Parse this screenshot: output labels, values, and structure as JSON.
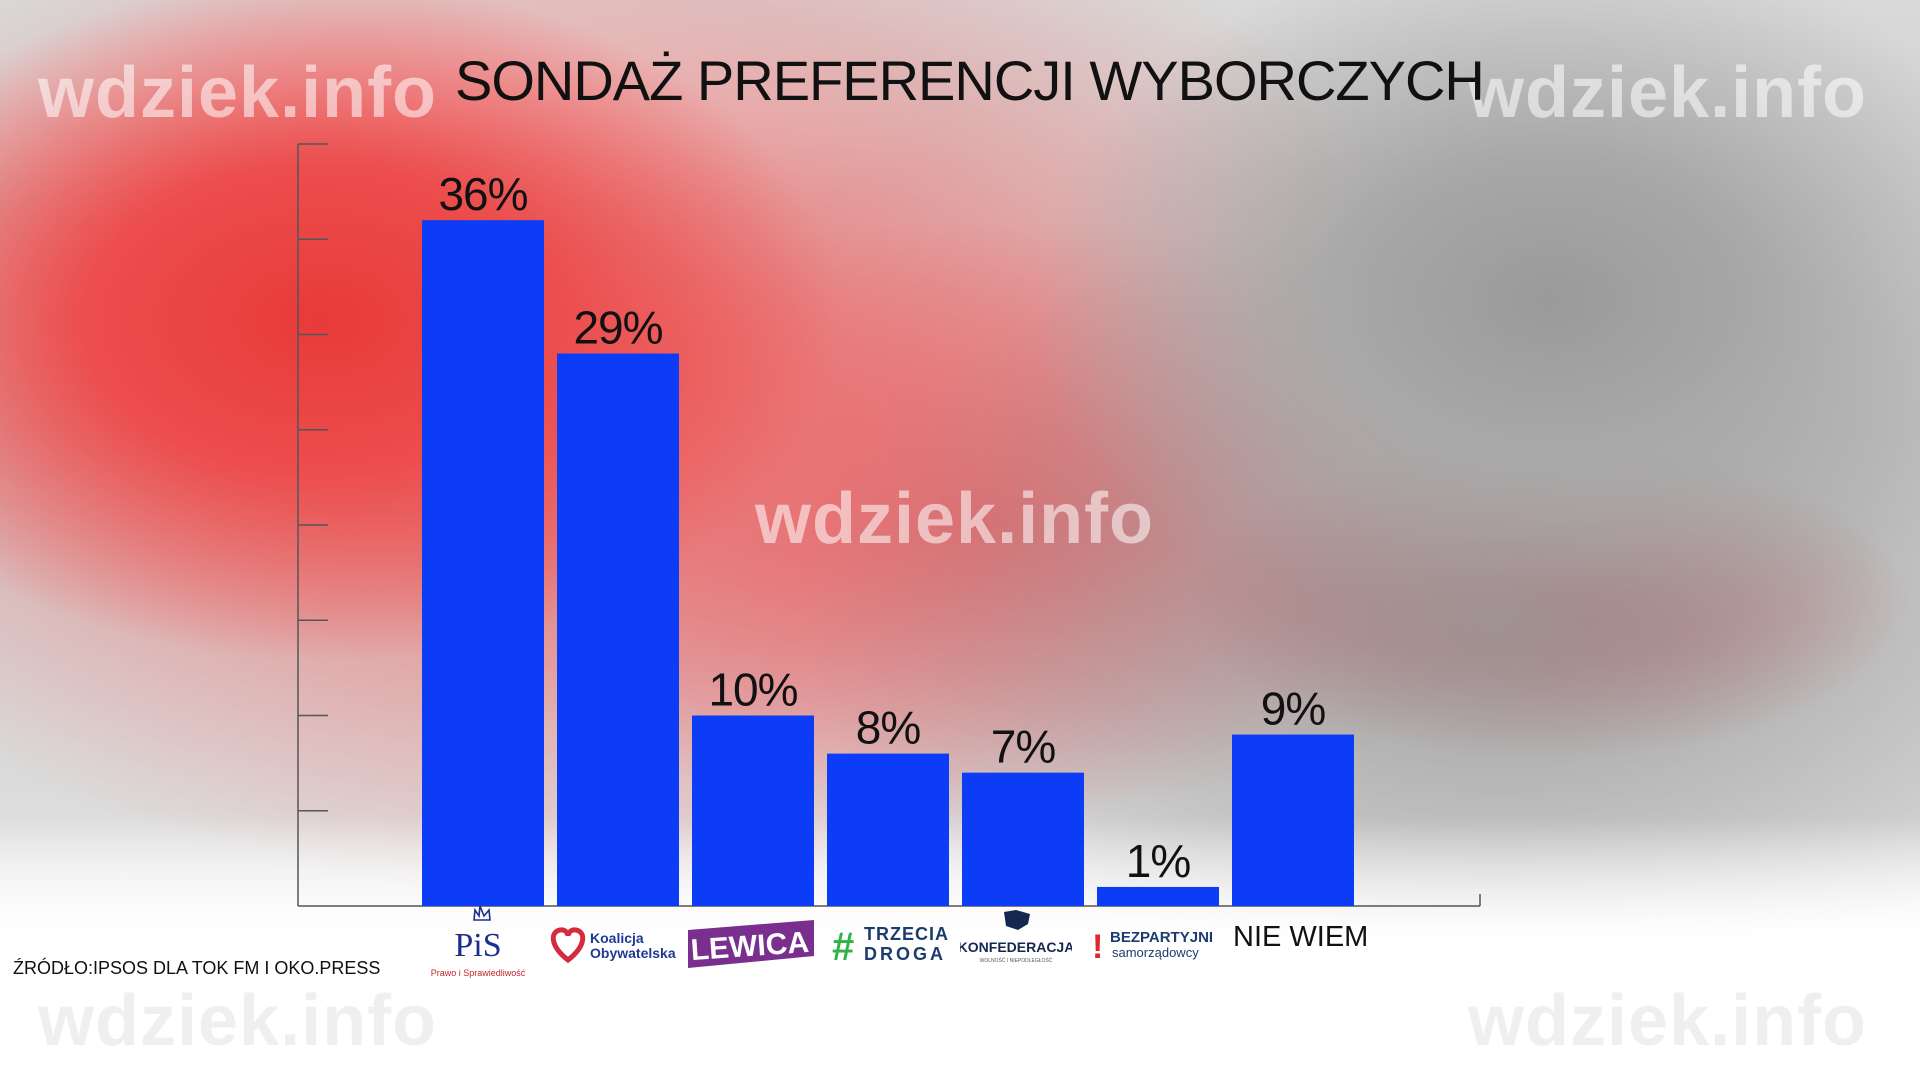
{
  "title": "SONDAŻ PREFERENCJI WYBORCZYCH",
  "watermarks": [
    "wdziek.info",
    "wdziek.info",
    "wdziek.info",
    "wdziek.info",
    "wdziek.info"
  ],
  "source": "ŹRÓDŁO:IPSOS DLA TOK FM I OKO.PRESS",
  "colors": {
    "bar": "#0c3cf6",
    "axis": "#555555",
    "text": "#111111"
  },
  "logos": {
    "pis": {
      "mark": "PiS",
      "tagline": "Prawo i Sprawiedliwość"
    },
    "ko": {
      "line1": "Koalicja",
      "line2": "Obywatelska"
    },
    "lewica": {
      "text": "LEWICA"
    },
    "trzecia_droga": {
      "hash": "#",
      "line1": "TRZECIA",
      "line2": "DROGA"
    },
    "konfederacja": {
      "text": "KONFEDERACJA",
      "tagline": "WOLNOŚĆ I NIEPODLEGŁOŚĆ"
    },
    "bezpartyjni": {
      "mark": "!",
      "line1": "BEZPARTYJNI",
      "line2": "samorządowcy"
    },
    "nie_wiem": {
      "text": "NIE WIEM"
    }
  },
  "chart_data": {
    "type": "bar",
    "categories": [
      "PiS",
      "Koalicja Obywatelska",
      "Lewica",
      "Trzecia Droga",
      "Konfederacja",
      "Bezpartyjni Samorządowcy",
      "NIE WIEM"
    ],
    "values": [
      36,
      29,
      10,
      8,
      7,
      1,
      9
    ],
    "data_labels": [
      "36%",
      "29%",
      "10%",
      "8%",
      "7%",
      "1%",
      "9%"
    ],
    "unit": "%",
    "ylim": [
      0,
      40
    ],
    "y_tick_labels_shown": false,
    "grid": false,
    "legend": "none"
  }
}
